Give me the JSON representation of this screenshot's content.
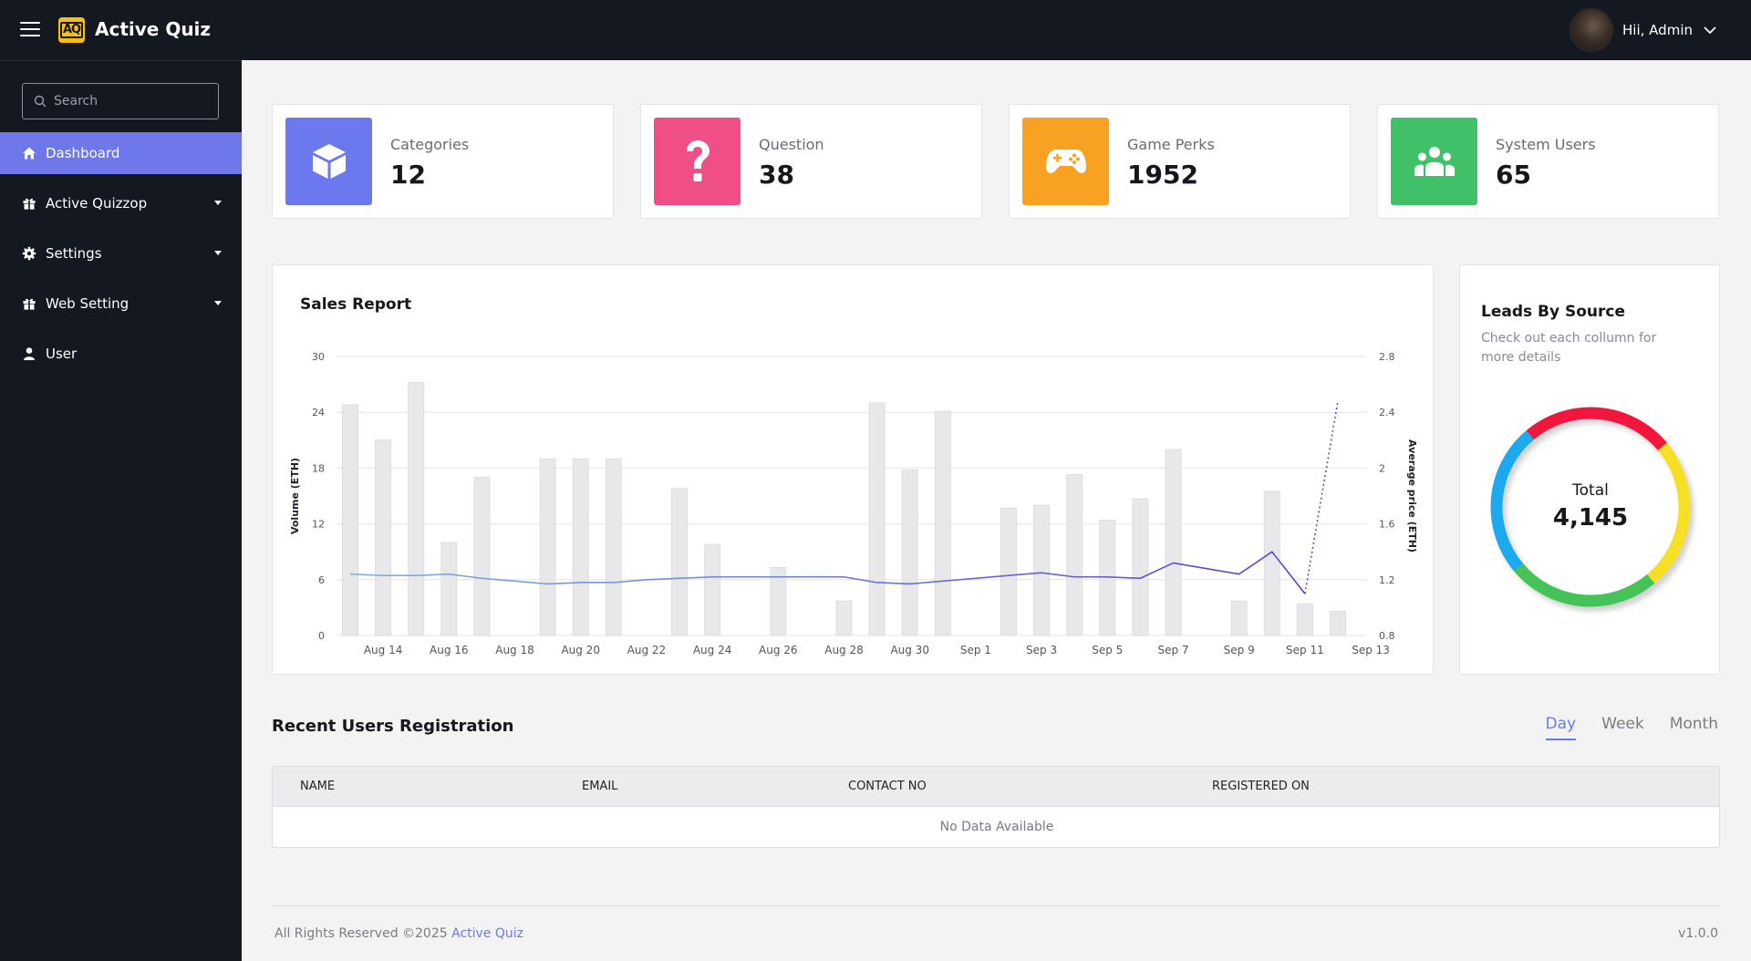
{
  "app": {
    "logo_text": "AQ",
    "title": "Active Quiz"
  },
  "header": {
    "greeting": "Hii, Admin"
  },
  "search": {
    "placeholder": "Search"
  },
  "sidebar": {
    "items": [
      {
        "label": "Dashboard",
        "icon": "home-icon",
        "active": true,
        "has_submenu": false
      },
      {
        "label": "Active Quizzop",
        "icon": "gift-icon",
        "active": false,
        "has_submenu": true
      },
      {
        "label": "Settings",
        "icon": "gear-icon",
        "active": false,
        "has_submenu": true
      },
      {
        "label": "Web Setting",
        "icon": "gift-icon",
        "active": false,
        "has_submenu": true
      },
      {
        "label": "User",
        "icon": "user-icon",
        "active": false,
        "has_submenu": false
      }
    ]
  },
  "stats": [
    {
      "label": "Categories",
      "value": "12",
      "color": "#6c78ee",
      "icon": "cube-icon"
    },
    {
      "label": "Question",
      "value": "38",
      "color": "#ef4f86",
      "icon": "question-icon"
    },
    {
      "label": "Game Perks",
      "value": "1952",
      "color": "#f9a122",
      "icon": "gamepad-icon"
    },
    {
      "label": "System Users",
      "value": "65",
      "color": "#41c167",
      "icon": "users-icon"
    }
  ],
  "sales_report": {
    "title": "Sales Report",
    "chart_data": {
      "type": "bar",
      "title": "Sales Report",
      "ylabel": "Volume (ETH)",
      "y2label": "Average price (ETH)",
      "ylim": [
        0,
        30
      ],
      "y2lim": [
        0.8,
        2.8
      ],
      "yticks": [
        "0",
        "6",
        "12",
        "18",
        "24",
        "30"
      ],
      "y2ticks": [
        "0.8",
        "1.2",
        "1.6",
        "2",
        "2.4",
        "2.8"
      ],
      "xticks": [
        "Aug 14",
        "Aug 16",
        "Aug 18",
        "Aug 20",
        "Aug 22",
        "Aug 24",
        "Aug 26",
        "Aug 28",
        "Aug 30",
        "Sep 1",
        "Sep 3",
        "Sep 5",
        "Sep 7",
        "Sep 9",
        "Sep 11",
        "Sep 13"
      ],
      "categories": [
        "Aug 13",
        "Aug 14",
        "Aug 15",
        "Aug 16",
        "Aug 17",
        "Aug 18",
        "Aug 19",
        "Aug 20",
        "Aug 21",
        "Aug 22",
        "Aug 23",
        "Aug 24",
        "Aug 25",
        "Aug 26",
        "Aug 27",
        "Aug 28",
        "Aug 29",
        "Aug 30",
        "Aug 31",
        "Sep 1",
        "Sep 2",
        "Sep 3",
        "Sep 4",
        "Sep 5",
        "Sep 6",
        "Sep 7",
        "Sep 8",
        "Sep 9",
        "Sep 10",
        "Sep 11",
        "Sep 12",
        "Sep 13"
      ],
      "series": [
        {
          "type": "bar",
          "axis": "left",
          "color": "#e8e8ea",
          "values": [
            24.8,
            21,
            27.2,
            10,
            17,
            null,
            19,
            19,
            19,
            null,
            15.8,
            9.8,
            null,
            7.3,
            null,
            3.7,
            25,
            17.8,
            24.1,
            null,
            13.7,
            14,
            17.3,
            12.4,
            14.7,
            20,
            null,
            3.7,
            15.5,
            3.4,
            2.6,
            null
          ]
        },
        {
          "type": "line",
          "axis": "right",
          "color": "#5b4fd0",
          "values": [
            1.24,
            1.23,
            1.23,
            1.24,
            1.21,
            1.19,
            1.17,
            1.18,
            1.18,
            1.2,
            1.21,
            1.22,
            1.22,
            1.22,
            1.22,
            1.22,
            1.18,
            1.17,
            1.19,
            1.21,
            1.23,
            1.25,
            1.22,
            1.22,
            1.21,
            1.32,
            1.28,
            1.24,
            1.4,
            1.1,
            2.48,
            null
          ]
        }
      ]
    }
  },
  "leads": {
    "title": "Leads By Source",
    "subtitle": "Check out each collumn for more details",
    "total_label": "Total",
    "total_value": "4,145",
    "chart_data": {
      "type": "pie",
      "slices": [
        {
          "value": 25,
          "color": "#f2193d"
        },
        {
          "value": 25,
          "color": "#f6e025"
        },
        {
          "value": 25,
          "color": "#45c258"
        },
        {
          "value": 25,
          "color": "#1aa9ee"
        }
      ]
    }
  },
  "registrations": {
    "title": "Recent Users Registration",
    "tabs": [
      {
        "label": "Day",
        "active": true
      },
      {
        "label": "Week",
        "active": false
      },
      {
        "label": "Month",
        "active": false
      }
    ],
    "columns": [
      "NAME",
      "EMAIL",
      "CONTACT NO",
      "REGISTERED ON"
    ],
    "empty_text": "No Data Available"
  },
  "footer": {
    "rights": "All Rights Reserved ©2025",
    "brand": "Active Quiz",
    "version": "v1.0.0"
  }
}
